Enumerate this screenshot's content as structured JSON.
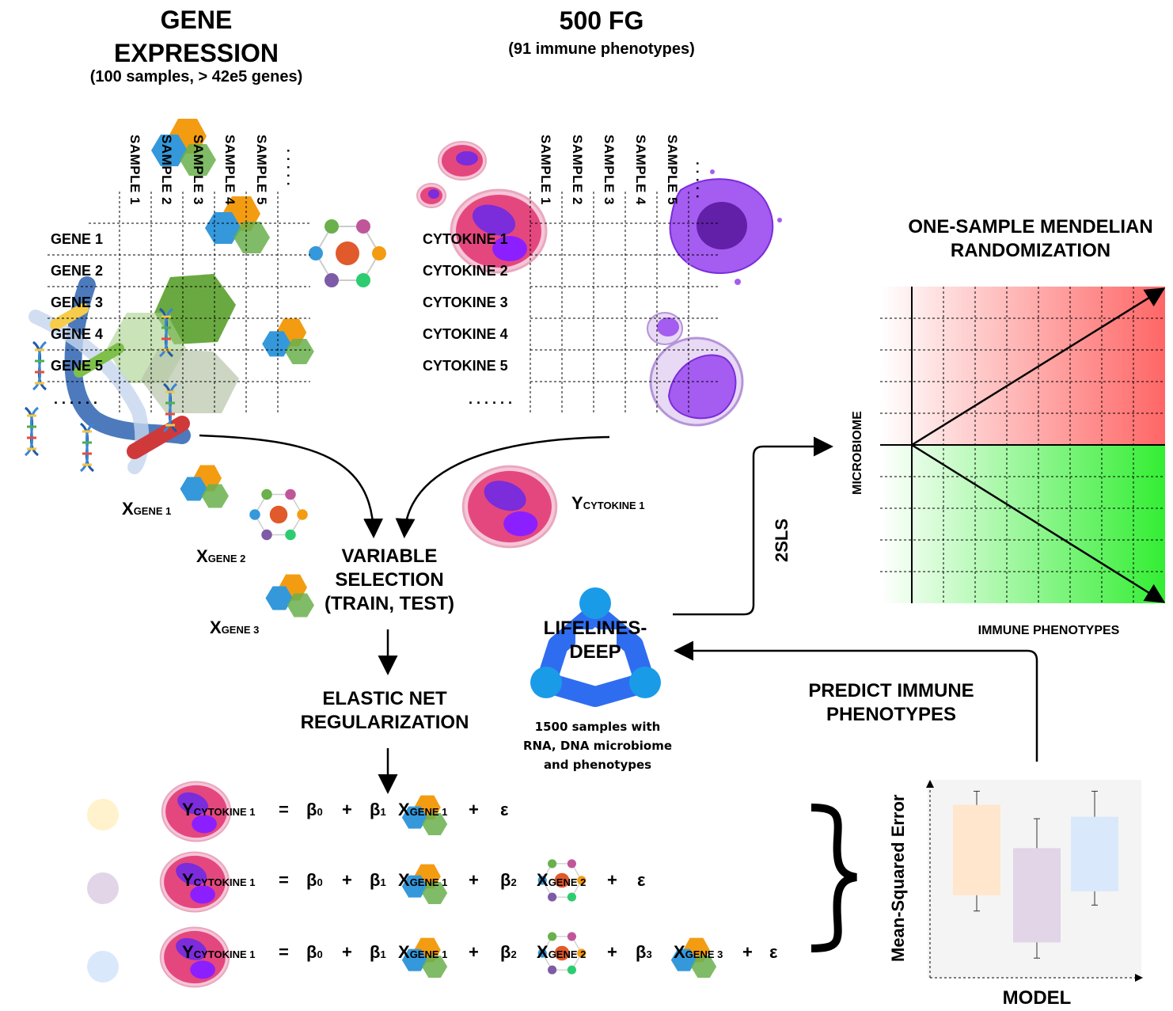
{
  "gene_expression": {
    "title_line1": "GENE",
    "title_line2": "EXPRESSION",
    "subtitle": "(100 samples, > 42e5 genes)",
    "columns": [
      "SAMPLE 1",
      "SAMPLE 2",
      "SAMPLE 3",
      "SAMPLE 4",
      "SAMPLE 5",
      ". . . . ."
    ],
    "rows": [
      "GENE 1",
      "GENE 2",
      "GENE 3",
      "GENE 4",
      "GENE 5",
      ". . . . . ."
    ]
  },
  "fg500": {
    "title": "500 FG",
    "subtitle": "(91 immune phenotypes)",
    "columns": [
      "SAMPLE 1",
      "SAMPLE 2",
      "SAMPLE 3",
      "SAMPLE 4",
      "SAMPLE 5",
      ". . . . ."
    ],
    "rows": [
      "CYTOKINE 1",
      "CYTOKINE 2",
      "CYTOKINE 3",
      "CYTOKINE 4",
      "CYTOKINE 5",
      ". . . . . ."
    ]
  },
  "features": {
    "x_letter": "X",
    "gene1": "GENE 1",
    "gene2": "GENE 2",
    "gene3": "GENE 3",
    "y_letter": "Y",
    "cytokine1": "CYTOKINE 1"
  },
  "steps": {
    "variable_selection": [
      "VARIABLE",
      "SELECTION",
      "(TRAIN, TEST)"
    ],
    "elastic_net": [
      "ELASTIC NET",
      "REGULARIZATION"
    ]
  },
  "lifelines": {
    "name_line1": "LIFELINES-",
    "name_line2": "DEEP",
    "desc": [
      "1500 samples with",
      "RNA, DNA microbiome",
      "and phenotypes"
    ]
  },
  "mr": {
    "title_line1": "ONE-SAMPLE MENDELIAN",
    "title_line2": "RANDOMIZATION",
    "ylabel": "MICROBIOME",
    "xlabel": "IMMUNE PHENOTYPES",
    "method": "2SLS"
  },
  "predict": {
    "line1": "PREDICT IMMUNE",
    "line2": "PHENOTYPES"
  },
  "equations": {
    "equals": "=",
    "plus": "+",
    "beta": "β",
    "b0": "0",
    "b1": "1",
    "b2": "2",
    "b3": "3",
    "epsilon": "ε",
    "dot_colors": [
      "#fff2cc",
      "#e1d5e7",
      "#dae8fc"
    ]
  },
  "chart_data": {
    "type": "box",
    "ylabel": "Mean-Squared Error",
    "xlabel": "MODEL",
    "series": [
      {
        "color": "#ffe6cc",
        "whisker_low": 0.34,
        "q1": 0.42,
        "q3": 0.88,
        "whisker_high": 0.95
      },
      {
        "color": "#e1d5e7",
        "whisker_low": 0.1,
        "q1": 0.18,
        "q3": 0.66,
        "whisker_high": 0.81
      },
      {
        "color": "#dae8fc",
        "whisker_low": 0.37,
        "q1": 0.44,
        "q3": 0.82,
        "whisker_high": 0.95
      }
    ]
  }
}
